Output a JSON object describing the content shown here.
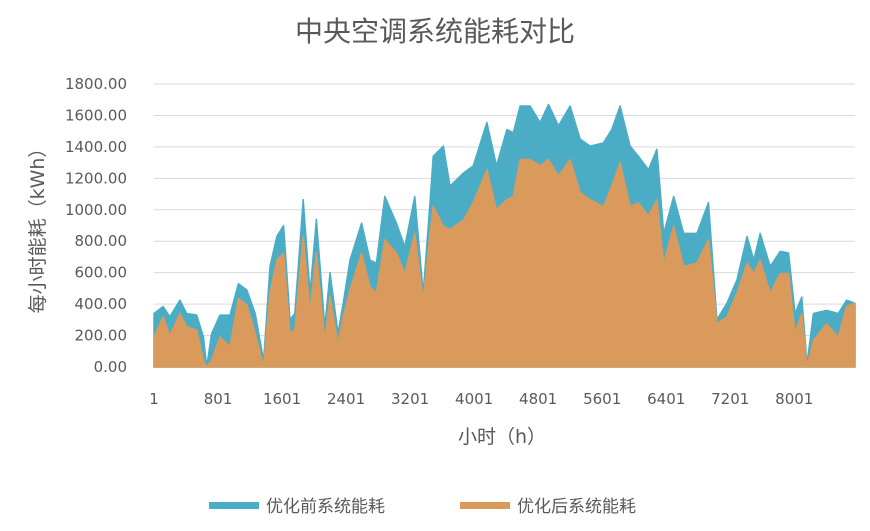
{
  "chart_data": {
    "type": "area",
    "title": "中央空调系统能耗对比",
    "xlabel": "小时（h）",
    "ylabel": "每小时能耗（kWh）",
    "ylim": [
      0,
      1800
    ],
    "xlim": [
      1,
      8760
    ],
    "y_ticks": [
      "0.00",
      "200.00",
      "400.00",
      "600.00",
      "800.00",
      "1000.00",
      "1200.00",
      "1400.00",
      "1600.00",
      "1800.00"
    ],
    "x_ticks": [
      "1",
      "801",
      "1601",
      "2401",
      "3201",
      "4001",
      "4801",
      "5601",
      "6401",
      "7201",
      "8001"
    ],
    "grid": true,
    "legend": "bottom",
    "x": [
      1,
      115,
      200,
      325,
      410,
      535,
      620,
      660,
      720,
      825,
      950,
      1055,
      1160,
      1265,
      1370,
      1450,
      1535,
      1620,
      1700,
      1760,
      1865,
      1950,
      2030,
      2135,
      2200,
      2300,
      2365,
      2450,
      2595,
      2700,
      2780,
      2885,
      3030,
      3135,
      3260,
      3365,
      3450,
      3490,
      3617,
      3700,
      3870,
      3990,
      4160,
      4280,
      4410,
      4490,
      4575,
      4700,
      4825,
      4930,
      5055,
      5200,
      5325,
      5450,
      5615,
      5720,
      5825,
      5950,
      6055,
      6180,
      6285,
      6370,
      6495,
      6620,
      6785,
      6930,
      7035,
      7160,
      7285,
      7410,
      7495,
      7575,
      7700,
      7825,
      7930,
      8010,
      8095,
      8160,
      8240,
      8405,
      8550,
      8655,
      8760
    ],
    "series": [
      {
        "name": "优化前系统能耗",
        "color": "#4BACC6",
        "values": [
          340,
          385,
          320,
          425,
          340,
          330,
          190,
          0,
          210,
          330,
          330,
          530,
          490,
          340,
          40,
          640,
          830,
          900,
          300,
          340,
          1065,
          470,
          940,
          255,
          600,
          215,
          405,
          680,
          915,
          680,
          660,
          1085,
          915,
          765,
          1085,
          470,
          1045,
          1340,
          1405,
          1150,
          1235,
          1280,
          1555,
          1280,
          1510,
          1490,
          1660,
          1660,
          1555,
          1670,
          1535,
          1660,
          1450,
          1405,
          1425,
          1510,
          1660,
          1405,
          1340,
          1255,
          1385,
          850,
          1085,
          850,
          850,
          1045,
          300,
          405,
          555,
          830,
          680,
          850,
          640,
          735,
          725,
          340,
          445,
          20,
          340,
          360,
          340,
          425,
          405
        ]
      },
      {
        "name": "优化后系统能耗",
        "color": "#DA9A5C",
        "values": [
          190,
          320,
          200,
          340,
          255,
          235,
          40,
          0,
          40,
          190,
          130,
          435,
          395,
          215,
          0,
          470,
          680,
          725,
          215,
          235,
          830,
          360,
          725,
          170,
          450,
          150,
          320,
          490,
          725,
          510,
          470,
          810,
          725,
          595,
          850,
          425,
          850,
          1020,
          895,
          875,
          935,
          1045,
          1255,
          1000,
          1065,
          1085,
          1320,
          1320,
          1280,
          1320,
          1215,
          1320,
          1110,
          1065,
          1020,
          1150,
          1300,
          1020,
          1045,
          960,
          1065,
          660,
          895,
          640,
          660,
          810,
          275,
          320,
          470,
          660,
          595,
          680,
          470,
          595,
          595,
          215,
          340,
          0,
          170,
          275,
          190,
          385,
          405
        ]
      }
    ]
  }
}
